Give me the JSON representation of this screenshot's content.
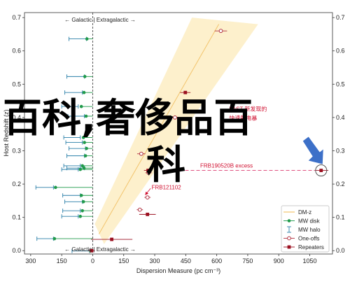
{
  "chart_data": {
    "type": "scatter",
    "title": "",
    "xlabel": "Dispersion Measure (pc cm⁻³)",
    "ylabel": "Host Redshift (z)",
    "xlim": [
      -330,
      1160
    ],
    "ylim": [
      -0.01,
      0.715
    ],
    "x_ticks": [
      -300,
      -150,
      0,
      150,
      300,
      450,
      600,
      750,
      900,
      1050
    ],
    "x_tick_labels": [
      "300",
      "150",
      "0",
      "150",
      "300",
      "450",
      "600",
      "750",
      "900",
      "1050"
    ],
    "y_ticks": [
      0.0,
      0.1,
      0.2,
      0.3,
      0.4,
      0.5,
      0.6,
      0.7
    ],
    "y_tick_labels": [
      "0.0",
      "0.1",
      "0.2",
      "0.3",
      "0.4",
      "0.5",
      "0.6",
      "0.7"
    ],
    "grid": false,
    "legend": {
      "placement": "bottom-right",
      "entries": [
        "DM-z",
        "MW disk",
        "MW halo",
        "One-offs",
        "Repeaters"
      ]
    },
    "colors": {
      "dmz": "#f2c46d",
      "mw_disk": "#1f9a4a",
      "mw_halo": "#2a7fa8",
      "one_off": "#b03040",
      "repeater": "#9b1020",
      "arrow": "#3d70c8",
      "annotation": "#d01030"
    },
    "dmz_band": {
      "center": [
        [
          30,
          0.05
        ],
        [
          610,
          0.68
        ]
      ],
      "upper": [
        [
          10,
          0.08
        ],
        [
          480,
          0.7
        ]
      ],
      "lower": [
        [
          55,
          0.02
        ],
        [
          800,
          0.68
        ]
      ]
    },
    "top_annotation": "← Galactic | Extragalactic →",
    "bottom_annotation": "← Galactic | Extragalactic →",
    "series": [
      {
        "name": "MW disk",
        "points": [
          {
            "x": -28,
            "y": 0.636
          },
          {
            "x": -38,
            "y": 0.523
          },
          {
            "x": -42,
            "y": 0.475
          },
          {
            "x": -55,
            "y": 0.433
          },
          {
            "x": -32,
            "y": 0.404
          },
          {
            "x": -45,
            "y": 0.34
          },
          {
            "x": -40,
            "y": 0.325
          },
          {
            "x": -30,
            "y": 0.307
          },
          {
            "x": -35,
            "y": 0.285
          },
          {
            "x": -50,
            "y": 0.255
          },
          {
            "x": -42,
            "y": 0.248
          },
          {
            "x": -60,
            "y": 0.244
          },
          {
            "x": -180,
            "y": 0.19
          },
          {
            "x": -55,
            "y": 0.166
          },
          {
            "x": -45,
            "y": 0.147
          },
          {
            "x": -50,
            "y": 0.12
          },
          {
            "x": -60,
            "y": 0.103
          },
          {
            "x": -185,
            "y": 0.036
          },
          {
            "x": -10,
            "y": -0.001
          }
        ]
      },
      {
        "name": "MW halo",
        "points": [
          {
            "x_low": -115,
            "x_high": -30,
            "y": 0.636
          },
          {
            "x_low": -125,
            "x_high": -40,
            "y": 0.523
          },
          {
            "x_low": -135,
            "x_high": -50,
            "y": 0.475
          },
          {
            "x_low": -150,
            "x_high": -70,
            "y": 0.433
          },
          {
            "x_low": -120,
            "x_high": -40,
            "y": 0.404
          },
          {
            "x_low": -140,
            "x_high": -60,
            "y": 0.34
          },
          {
            "x_low": -130,
            "x_high": -50,
            "y": 0.325
          },
          {
            "x_low": -115,
            "x_high": -35,
            "y": 0.307
          },
          {
            "x_low": -125,
            "x_high": -40,
            "y": 0.285
          },
          {
            "x_low": -140,
            "x_high": -60,
            "y": 0.255
          },
          {
            "x_low": -125,
            "x_high": -40,
            "y": 0.248
          },
          {
            "x_low": -150,
            "x_high": -70,
            "y": 0.244
          },
          {
            "x_low": -275,
            "x_high": -190,
            "y": 0.19
          },
          {
            "x_low": -145,
            "x_high": -60,
            "y": 0.166
          },
          {
            "x_low": -135,
            "x_high": -50,
            "y": 0.147
          },
          {
            "x_low": -145,
            "x_high": -60,
            "y": 0.12
          },
          {
            "x_low": -150,
            "x_high": -70,
            "y": 0.103
          },
          {
            "x_low": -270,
            "x_high": -190,
            "y": 0.036
          },
          {
            "x_low": -100,
            "x_high": -15,
            "y": -0.001
          }
        ]
      },
      {
        "name": "One-offs",
        "points": [
          {
            "x": 620,
            "y": 0.66,
            "err": 30
          },
          {
            "x": 398,
            "y": 0.4,
            "err": 25
          },
          {
            "x": 235,
            "y": 0.291,
            "err": 20
          },
          {
            "x": 270,
            "y": 0.234,
            "err": 15
          },
          {
            "x": 265,
            "y": 0.16,
            "err": 15
          },
          {
            "x": 228,
            "y": 0.123,
            "err": 15
          }
        ]
      },
      {
        "name": "Repeaters",
        "points": [
          {
            "x": 448,
            "y": 0.475,
            "err": 25
          },
          {
            "x": 268,
            "y": 0.241,
            "err": 20
          },
          {
            "x": 265,
            "y": 0.109,
            "err": 40
          },
          {
            "x": 92,
            "y": 0.034,
            "err": 100
          },
          {
            "x": -5,
            "y": 0.0,
            "err": 15
          },
          {
            "x": 1105,
            "y": 0.241,
            "err": 35
          }
        ]
      }
    ],
    "annotations": [
      {
        "text": "FAST 新发现的",
        "x": 660,
        "y": 0.42
      },
      {
        "text": "快速射电暴",
        "x": 660,
        "y": 0.392
      },
      {
        "text": "FRB190520B excess",
        "x": 520,
        "y": 0.25
      },
      {
        "text": "FRB121102",
        "x": 285,
        "y": 0.184
      }
    ],
    "highlight": {
      "x": 1105,
      "y": 0.241,
      "label": "FRB190520B"
    }
  },
  "overlay": {
    "line1": "百科,奢侈品百",
    "line2": "科"
  }
}
